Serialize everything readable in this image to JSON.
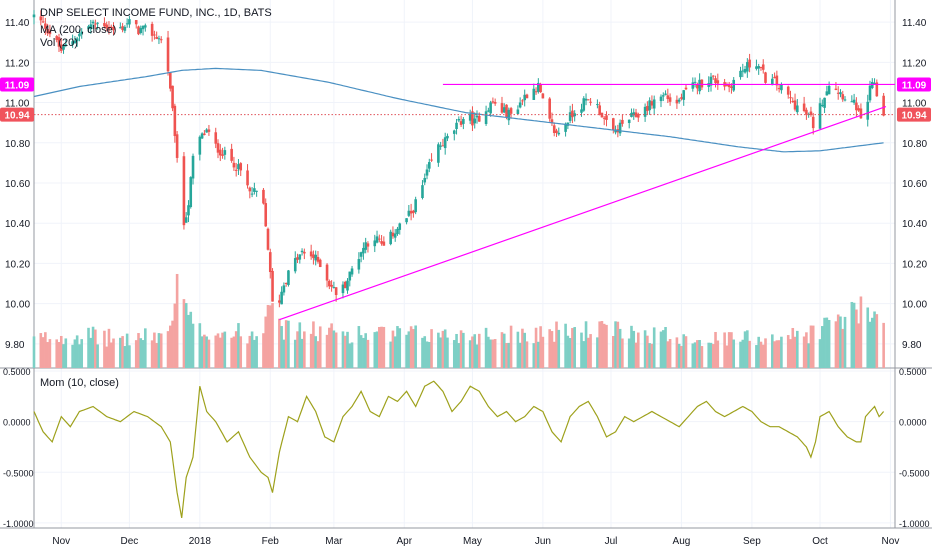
{
  "header": {
    "title": "DNP SELECT INCOME FUND, INC., 1D, BATS",
    "indicator_ma": "MA (200, close)",
    "indicator_vol": "Vol (20)"
  },
  "osc_header": {
    "label": "Mom (10, close)"
  },
  "price_axis": {
    "ticks": [
      {
        "label": "11.40",
        "value": 11.4
      },
      {
        "label": "11.20",
        "value": 11.2
      },
      {
        "label": "11.00",
        "value": 11.0
      },
      {
        "label": "10.80",
        "value": 10.8
      },
      {
        "label": "10.60",
        "value": 10.6
      },
      {
        "label": "10.40",
        "value": 10.4
      },
      {
        "label": "10.20",
        "value": 10.2
      },
      {
        "label": "10.00",
        "value": 10.0
      },
      {
        "label": "9.80",
        "value": 9.8
      }
    ],
    "badges": [
      {
        "label": "11.09",
        "value": 11.09,
        "color": "#ff00ff"
      },
      {
        "label": "10.94",
        "value": 10.94,
        "color": "#f0535c"
      }
    ]
  },
  "osc_axis": {
    "ticks": [
      {
        "label": "0.5000",
        "value": 0.5
      },
      {
        "label": "0.0000",
        "value": 0.0
      },
      {
        "label": "-0.5000",
        "value": -0.5
      },
      {
        "label": "-1.0000",
        "value": -1.0
      }
    ]
  },
  "time_axis": {
    "ticks": [
      {
        "label": "Nov",
        "day": 12
      },
      {
        "label": "Dec",
        "day": 42
      },
      {
        "label": "2018",
        "day": 73
      },
      {
        "label": "Feb",
        "day": 104
      },
      {
        "label": "Mar",
        "day": 132
      },
      {
        "label": "Apr",
        "day": 163
      },
      {
        "label": "May",
        "day": 193
      },
      {
        "label": "Jun",
        "day": 224
      },
      {
        "label": "Jul",
        "day": 254
      },
      {
        "label": "Aug",
        "day": 285
      },
      {
        "label": "Sep",
        "day": 316
      },
      {
        "label": "Oct",
        "day": 346
      },
      {
        "label": "Nov",
        "day": 377
      }
    ]
  },
  "colors": {
    "up": "#26a69a",
    "down": "#ef5350",
    "vol_up": "#7dcfc5",
    "vol_down": "#f4a3a1",
    "ma": "#4a90c2",
    "trendline": "#ff00ff",
    "momentum": "#9ea11c",
    "dotted": "#e0525a"
  },
  "chart_data": {
    "type": "candlestick",
    "title": "DNP SELECT INCOME FUND, INC., 1D, BATS",
    "x_start": "2017-10-20",
    "x_end": "2018-11-03",
    "x_unit": "calendar days since 2017-10-20",
    "ylim": [
      9.68,
      11.51
    ],
    "last_price": 10.94,
    "resistance_level": 11.09,
    "trendline": {
      "from": [
        "2018-02-05",
        9.92
      ],
      "to": [
        "2018-10-30",
        10.98
      ]
    },
    "price_anchors": [
      [
        0,
        11.43
      ],
      [
        5,
        11.38
      ],
      [
        8,
        11.33
      ],
      [
        12,
        11.26
      ],
      [
        18,
        11.32
      ],
      [
        24,
        11.38
      ],
      [
        30,
        11.4
      ],
      [
        36,
        11.35
      ],
      [
        42,
        11.4
      ],
      [
        46,
        11.36
      ],
      [
        50,
        11.36
      ],
      [
        55,
        11.32
      ],
      [
        58,
        11.28
      ],
      [
        60,
        11.05
      ],
      [
        62,
        10.85
      ],
      [
        64,
        10.55
      ],
      [
        66,
        10.4
      ],
      [
        68,
        10.5
      ],
      [
        70,
        10.72
      ],
      [
        73,
        10.82
      ],
      [
        76,
        10.86
      ],
      [
        80,
        10.78
      ],
      [
        84,
        10.74
      ],
      [
        88,
        10.7
      ],
      [
        92,
        10.64
      ],
      [
        95,
        10.55
      ],
      [
        98,
        10.55
      ],
      [
        101,
        10.48
      ],
      [
        103,
        10.28
      ],
      [
        105,
        10.0
      ],
      [
        107,
        9.98
      ],
      [
        110,
        10.1
      ],
      [
        114,
        10.2
      ],
      [
        118,
        10.25
      ],
      [
        122,
        10.24
      ],
      [
        126,
        10.2
      ],
      [
        130,
        10.1
      ],
      [
        134,
        10.04
      ],
      [
        138,
        10.12
      ],
      [
        142,
        10.22
      ],
      [
        146,
        10.3
      ],
      [
        150,
        10.33
      ],
      [
        154,
        10.28
      ],
      [
        158,
        10.35
      ],
      [
        162,
        10.4
      ],
      [
        166,
        10.45
      ],
      [
        170,
        10.55
      ],
      [
        174,
        10.68
      ],
      [
        178,
        10.78
      ],
      [
        182,
        10.82
      ],
      [
        186,
        10.88
      ],
      [
        190,
        10.94
      ],
      [
        194,
        10.9
      ],
      [
        198,
        10.96
      ],
      [
        202,
        11.0
      ],
      [
        206,
        10.96
      ],
      [
        210,
        10.94
      ],
      [
        214,
        11.0
      ],
      [
        218,
        11.06
      ],
      [
        222,
        11.08
      ],
      [
        226,
        10.92
      ],
      [
        230,
        10.84
      ],
      [
        234,
        10.9
      ],
      [
        238,
        10.96
      ],
      [
        242,
        11.0
      ],
      [
        246,
        11.02
      ],
      [
        250,
        10.94
      ],
      [
        254,
        10.84
      ],
      [
        258,
        10.88
      ],
      [
        262,
        10.92
      ],
      [
        266,
        10.94
      ],
      [
        270,
        10.98
      ],
      [
        274,
        11.02
      ],
      [
        278,
        11.04
      ],
      [
        282,
        10.98
      ],
      [
        286,
        11.04
      ],
      [
        290,
        11.08
      ],
      [
        294,
        11.1
      ],
      [
        298,
        11.12
      ],
      [
        302,
        11.1
      ],
      [
        306,
        11.08
      ],
      [
        310,
        11.14
      ],
      [
        314,
        11.18
      ],
      [
        318,
        11.2
      ],
      [
        322,
        11.12
      ],
      [
        326,
        11.1
      ],
      [
        330,
        11.06
      ],
      [
        334,
        11.0
      ],
      [
        338,
        10.96
      ],
      [
        342,
        10.92
      ],
      [
        344,
        10.86
      ],
      [
        346,
        10.98
      ],
      [
        350,
        11.1
      ],
      [
        354,
        11.06
      ],
      [
        358,
        11.02
      ],
      [
        362,
        10.98
      ],
      [
        364,
        10.9
      ],
      [
        366,
        10.96
      ],
      [
        368,
        11.06
      ],
      [
        370,
        11.1
      ],
      [
        372,
        10.98
      ],
      [
        374,
        10.94
      ]
    ],
    "ma200_anchors": [
      [
        0,
        11.03
      ],
      [
        20,
        11.08
      ],
      [
        50,
        11.13
      ],
      [
        65,
        11.16
      ],
      [
        80,
        11.17
      ],
      [
        100,
        11.16
      ],
      [
        130,
        11.1
      ],
      [
        160,
        11.02
      ],
      [
        190,
        10.95
      ],
      [
        220,
        10.91
      ],
      [
        250,
        10.87
      ],
      [
        280,
        10.83
      ],
      [
        310,
        10.78
      ],
      [
        330,
        10.755
      ],
      [
        346,
        10.76
      ],
      [
        360,
        10.78
      ],
      [
        374,
        10.8
      ]
    ],
    "volume_anchors": [
      [
        0,
        0.3
      ],
      [
        20,
        0.35
      ],
      [
        40,
        0.3
      ],
      [
        58,
        0.35
      ],
      [
        62,
        0.6
      ],
      [
        64,
        1.0
      ],
      [
        66,
        0.7
      ],
      [
        70,
        0.4
      ],
      [
        100,
        0.35
      ],
      [
        104,
        0.9
      ],
      [
        106,
        0.85
      ],
      [
        110,
        0.4
      ],
      [
        150,
        0.35
      ],
      [
        200,
        0.35
      ],
      [
        250,
        0.4
      ],
      [
        300,
        0.3
      ],
      [
        340,
        0.35
      ],
      [
        362,
        0.6
      ],
      [
        374,
        0.5
      ]
    ],
    "momentum_anchors": [
      [
        0,
        0.1
      ],
      [
        4,
        -0.1
      ],
      [
        8,
        -0.2
      ],
      [
        12,
        0.05
      ],
      [
        16,
        -0.05
      ],
      [
        20,
        0.1
      ],
      [
        26,
        0.15
      ],
      [
        32,
        0.05
      ],
      [
        38,
        0.0
      ],
      [
        44,
        0.1
      ],
      [
        50,
        0.05
      ],
      [
        56,
        -0.05
      ],
      [
        60,
        -0.2
      ],
      [
        63,
        -0.7
      ],
      [
        65,
        -0.95
      ],
      [
        67,
        -0.55
      ],
      [
        70,
        -0.35
      ],
      [
        73,
        0.35
      ],
      [
        76,
        0.1
      ],
      [
        80,
        0.0
      ],
      [
        85,
        -0.2
      ],
      [
        90,
        -0.1
      ],
      [
        95,
        -0.35
      ],
      [
        100,
        -0.5
      ],
      [
        103,
        -0.55
      ],
      [
        105,
        -0.7
      ],
      [
        108,
        -0.3
      ],
      [
        112,
        0.05
      ],
      [
        116,
        0.0
      ],
      [
        120,
        0.25
      ],
      [
        124,
        0.1
      ],
      [
        128,
        -0.15
      ],
      [
        132,
        -0.2
      ],
      [
        136,
        0.05
      ],
      [
        140,
        0.15
      ],
      [
        144,
        0.3
      ],
      [
        148,
        0.1
      ],
      [
        152,
        0.05
      ],
      [
        156,
        0.25
      ],
      [
        160,
        0.2
      ],
      [
        164,
        0.3
      ],
      [
        168,
        0.15
      ],
      [
        172,
        0.35
      ],
      [
        176,
        0.4
      ],
      [
        180,
        0.3
      ],
      [
        184,
        0.1
      ],
      [
        188,
        0.2
      ],
      [
        192,
        0.35
      ],
      [
        196,
        0.3
      ],
      [
        200,
        0.15
      ],
      [
        204,
        0.05
      ],
      [
        208,
        0.1
      ],
      [
        212,
        0.0
      ],
      [
        216,
        0.05
      ],
      [
        220,
        0.15
      ],
      [
        224,
        0.1
      ],
      [
        228,
        -0.1
      ],
      [
        232,
        -0.2
      ],
      [
        236,
        0.05
      ],
      [
        240,
        0.15
      ],
      [
        244,
        0.2
      ],
      [
        248,
        0.05
      ],
      [
        252,
        -0.15
      ],
      [
        256,
        -0.1
      ],
      [
        260,
        0.05
      ],
      [
        264,
        0.0
      ],
      [
        268,
        0.05
      ],
      [
        272,
        0.1
      ],
      [
        276,
        0.05
      ],
      [
        280,
        0.0
      ],
      [
        284,
        -0.05
      ],
      [
        288,
        0.05
      ],
      [
        292,
        0.15
      ],
      [
        296,
        0.2
      ],
      [
        300,
        0.1
      ],
      [
        304,
        0.05
      ],
      [
        308,
        0.1
      ],
      [
        312,
        0.15
      ],
      [
        316,
        0.1
      ],
      [
        320,
        0.0
      ],
      [
        324,
        -0.05
      ],
      [
        328,
        -0.05
      ],
      [
        332,
        -0.1
      ],
      [
        336,
        -0.15
      ],
      [
        340,
        -0.25
      ],
      [
        342,
        -0.35
      ],
      [
        344,
        -0.2
      ],
      [
        346,
        0.05
      ],
      [
        350,
        0.1
      ],
      [
        354,
        -0.05
      ],
      [
        358,
        -0.15
      ],
      [
        362,
        -0.2
      ],
      [
        364,
        -0.2
      ],
      [
        366,
        0.05
      ],
      [
        368,
        0.1
      ],
      [
        370,
        0.15
      ],
      [
        372,
        0.05
      ],
      [
        374,
        0.1
      ]
    ],
    "momentum_ylim": [
      -1.05,
      0.53
    ],
    "series": [
      {
        "name": "DNP",
        "type": "candlestick"
      },
      {
        "name": "MA (200, close)",
        "type": "line"
      },
      {
        "name": "Vol (20)",
        "type": "bar"
      },
      {
        "name": "Mom (10, close)",
        "type": "line"
      }
    ]
  }
}
